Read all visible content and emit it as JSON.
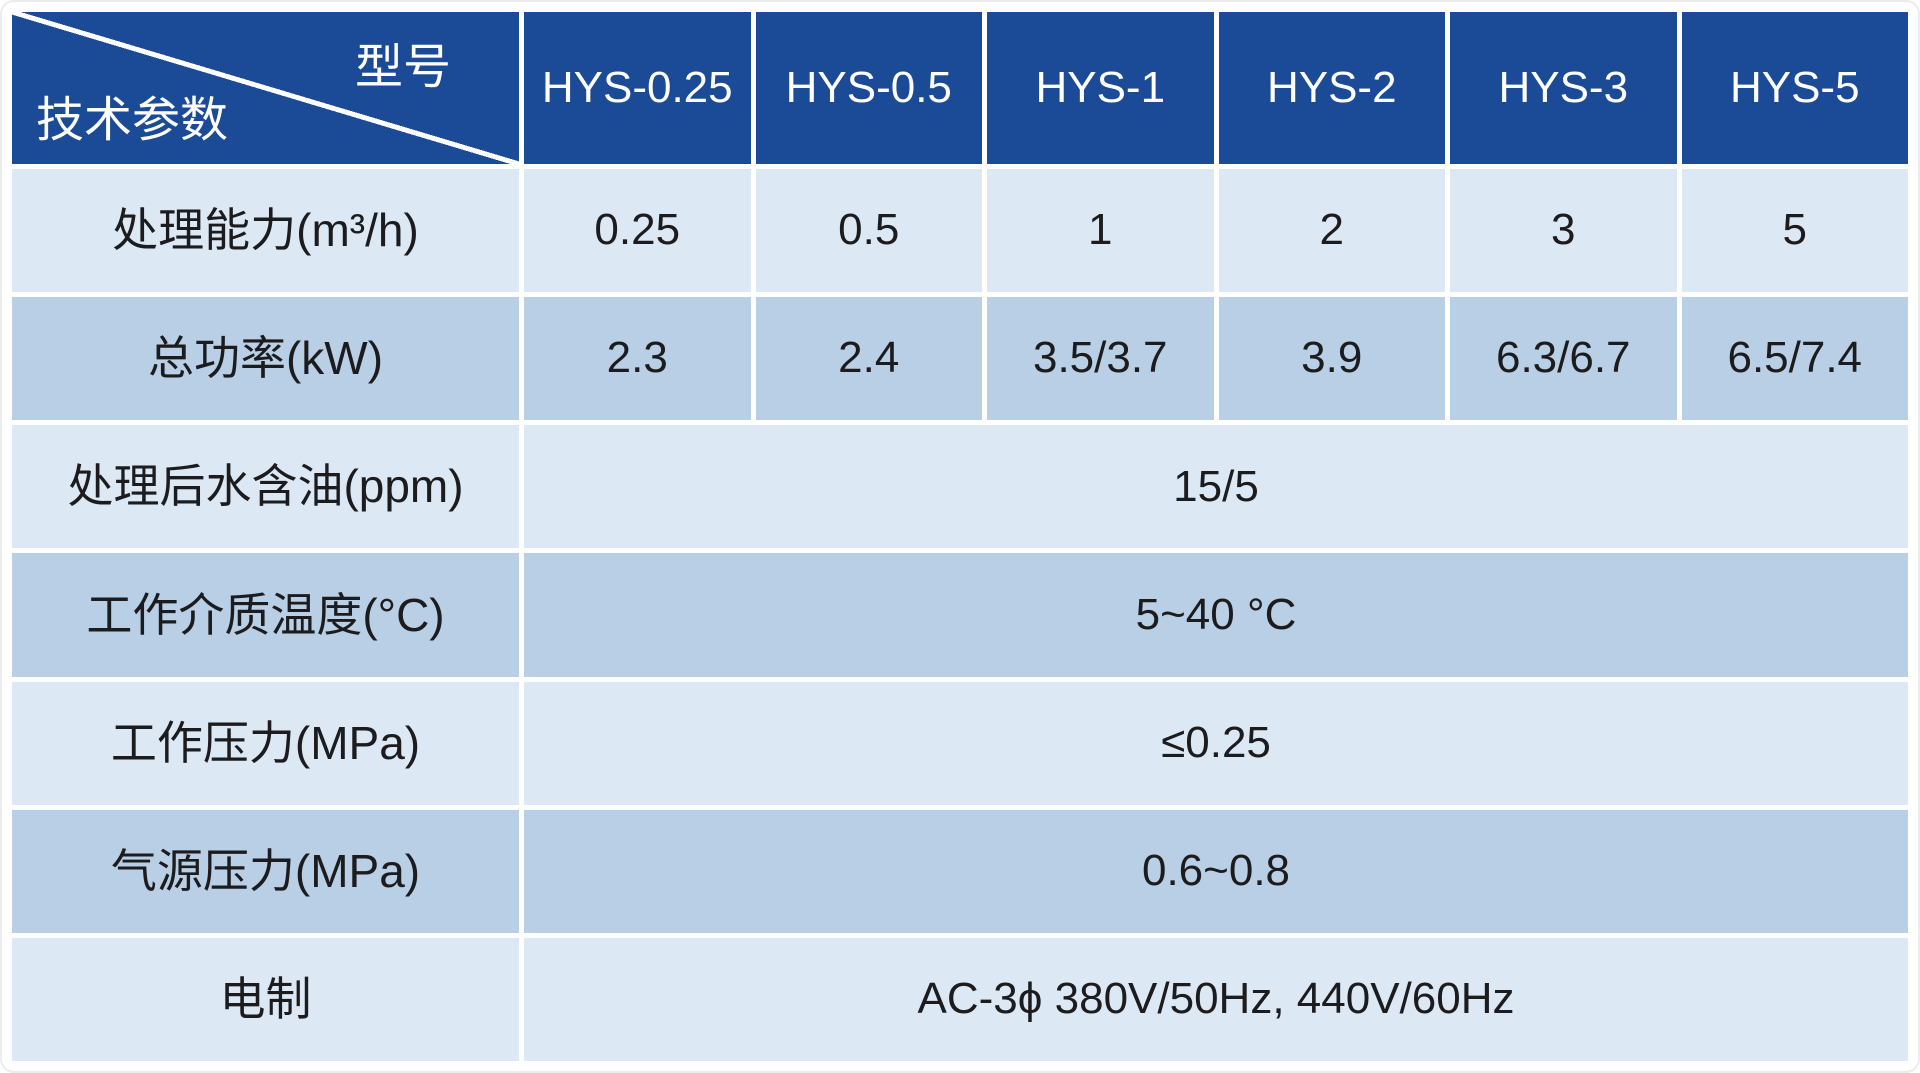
{
  "table": {
    "corner_top_right": "型号",
    "corner_bottom_left": "技术参数",
    "models": [
      "HYS-0.25",
      "HYS-0.5",
      "HYS-1",
      "HYS-2",
      "HYS-3",
      "HYS-5"
    ],
    "rows": [
      {
        "label": "处理能力(m³/h)",
        "values": [
          "0.25",
          "0.5",
          "1",
          "2",
          "3",
          "5"
        ]
      },
      {
        "label": "总功率(kW)",
        "values": [
          "2.3",
          "2.4",
          "3.5/3.7",
          "3.9",
          "6.3/6.7",
          "6.5/7.4"
        ]
      },
      {
        "label": "处理后水含油(ppm)",
        "merged": "15/5"
      },
      {
        "label": "工作介质温度(°C)",
        "merged": "5~40 °C"
      },
      {
        "label": "工作压力(MPa)",
        "merged": "≤0.25"
      },
      {
        "label": "气源压力(MPa)",
        "merged": "0.6~0.8"
      },
      {
        "label": "电制",
        "merged": "AC-3ϕ 380V/50Hz, 440V/60Hz"
      }
    ],
    "colors": {
      "header_blue": "#1b4b96",
      "row_light": "#dce9f5",
      "row_medium": "#b9cfe6",
      "grid_white": "#ffffff",
      "text_dark": "#1c1c1e"
    }
  }
}
